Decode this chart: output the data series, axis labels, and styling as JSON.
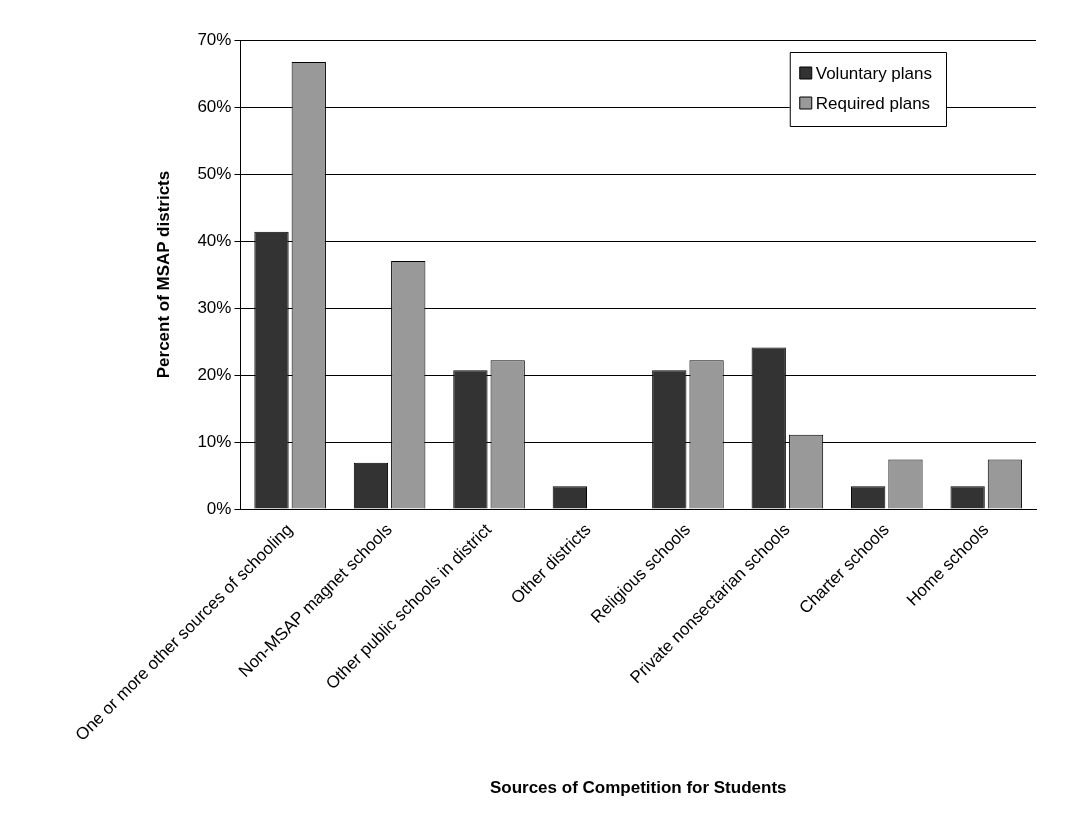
{
  "chart_data": {
    "type": "bar",
    "xlabel": "Sources of Competition for Students",
    "ylabel": "Percent of MSAP districts",
    "categories": [
      "One or more other sources of schooling",
      "Non-MSAP magnet schools",
      "Other public schools in district",
      "Other districts",
      "Religious schools",
      "Private nonsectarian schools",
      "Charter schools",
      "Home schools"
    ],
    "series": [
      {
        "name": "Voluntary plans",
        "color": "#333333",
        "values": [
          41.4,
          6.9,
          20.7,
          3.4,
          20.7,
          24.1,
          3.4,
          3.4
        ]
      },
      {
        "name": "Required plans",
        "color": "#999999",
        "values": [
          66.7,
          37.0,
          22.2,
          0,
          22.2,
          11.1,
          7.4,
          7.4
        ]
      }
    ],
    "ylim": [
      0,
      70
    ],
    "yticks": [
      {
        "value": 0,
        "label": "0%"
      },
      {
        "value": 10,
        "label": "10%"
      },
      {
        "value": 20,
        "label": "20%"
      },
      {
        "value": 30,
        "label": "30%"
      },
      {
        "value": 40,
        "label": "40%"
      },
      {
        "value": 50,
        "label": "50%"
      },
      {
        "value": 60,
        "label": "60%"
      },
      {
        "value": 70,
        "label": "70%"
      }
    ],
    "grid": "y",
    "legend": "top right"
  }
}
